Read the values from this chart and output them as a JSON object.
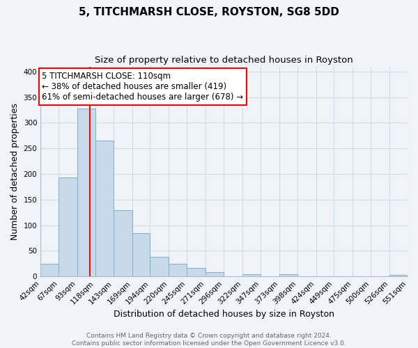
{
  "title": "5, TITCHMARSH CLOSE, ROYSTON, SG8 5DD",
  "subtitle": "Size of property relative to detached houses in Royston",
  "xlabel": "Distribution of detached houses by size in Royston",
  "ylabel": "Number of detached properties",
  "bin_labels": [
    "42sqm",
    "67sqm",
    "93sqm",
    "118sqm",
    "143sqm",
    "169sqm",
    "194sqm",
    "220sqm",
    "245sqm",
    "271sqm",
    "296sqm",
    "322sqm",
    "347sqm",
    "373sqm",
    "398sqm",
    "424sqm",
    "449sqm",
    "475sqm",
    "500sqm",
    "526sqm",
    "551sqm"
  ],
  "bin_edges": [
    42,
    67,
    93,
    118,
    143,
    169,
    194,
    220,
    245,
    271,
    296,
    322,
    347,
    373,
    398,
    424,
    449,
    475,
    500,
    526,
    551
  ],
  "bar_heights": [
    25,
    193,
    328,
    265,
    130,
    85,
    38,
    25,
    17,
    8,
    0,
    5,
    0,
    5,
    0,
    0,
    0,
    0,
    0,
    3
  ],
  "bar_color": "#c8d9ea",
  "bar_edgecolor": "#7bafd4",
  "vline_x": 110,
  "vline_color": "red",
  "annotation_box_text": "5 TITCHMARSH CLOSE: 110sqm\n← 38% of detached houses are smaller (419)\n61% of semi-detached houses are larger (678) →",
  "box_edgecolor": "red",
  "ylim": [
    0,
    410
  ],
  "yticks": [
    0,
    50,
    100,
    150,
    200,
    250,
    300,
    350,
    400
  ],
  "footer_line1": "Contains HM Land Registry data © Crown copyright and database right 2024.",
  "footer_line2": "Contains public sector information licensed under the Open Government Licence v3.0.",
  "background_color": "#f0f4f8",
  "grid_color": "#d0dce8",
  "title_fontsize": 11,
  "subtitle_fontsize": 9.5,
  "axis_label_fontsize": 9,
  "tick_fontsize": 7.5,
  "annotation_fontsize": 8.5,
  "footer_fontsize": 6.5
}
